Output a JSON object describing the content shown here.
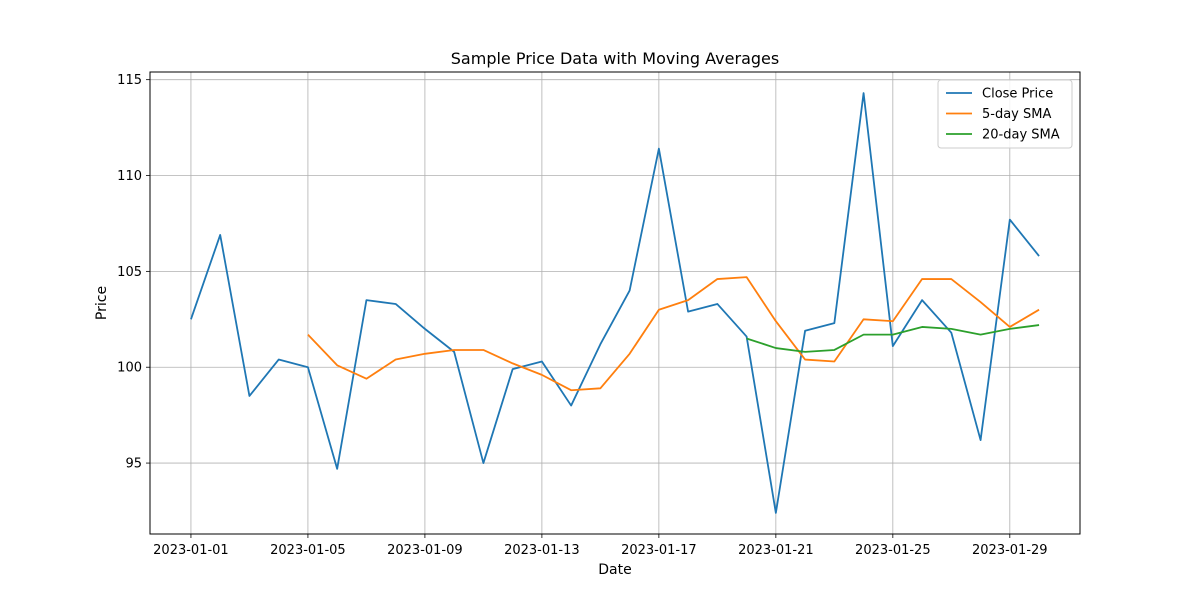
{
  "chart_data": {
    "type": "line",
    "title": "Sample Price Data with Moving Averages",
    "xlabel": "Date",
    "ylabel": "Price",
    "x": [
      "2023-01-01",
      "2023-01-02",
      "2023-01-03",
      "2023-01-04",
      "2023-01-05",
      "2023-01-06",
      "2023-01-07",
      "2023-01-08",
      "2023-01-09",
      "2023-01-10",
      "2023-01-11",
      "2023-01-12",
      "2023-01-13",
      "2023-01-14",
      "2023-01-15",
      "2023-01-16",
      "2023-01-17",
      "2023-01-18",
      "2023-01-19",
      "2023-01-20",
      "2023-01-21",
      "2023-01-22",
      "2023-01-23",
      "2023-01-24",
      "2023-01-25",
      "2023-01-26",
      "2023-01-27",
      "2023-01-28",
      "2023-01-29",
      "2023-01-30"
    ],
    "xticks": [
      "2023-01-01",
      "2023-01-05",
      "2023-01-09",
      "2023-01-13",
      "2023-01-17",
      "2023-01-21",
      "2023-01-25",
      "2023-01-29"
    ],
    "yticks": [
      95,
      100,
      105,
      110,
      115
    ],
    "xlim": [
      "2022-12-30T14:24",
      "2023-01-31T09:36"
    ],
    "ylim": [
      91.3,
      115.4
    ],
    "grid": true,
    "legend_position": "top-right",
    "series": [
      {
        "name": "Close Price",
        "color": "#1f77b4",
        "values": [
          102.5,
          106.9,
          98.5,
          100.4,
          100.0,
          94.7,
          103.5,
          103.3,
          102.0,
          100.8,
          95.0,
          99.9,
          100.3,
          98.0,
          101.2,
          104.0,
          111.4,
          102.9,
          103.3,
          101.6,
          92.4,
          101.9,
          102.3,
          114.3,
          101.1,
          103.5,
          101.8,
          96.2,
          107.7,
          105.8
        ]
      },
      {
        "name": "5-day SMA",
        "color": "#ff7f0e",
        "values": [
          null,
          null,
          null,
          null,
          101.7,
          100.1,
          99.4,
          100.4,
          100.7,
          100.9,
          100.9,
          100.2,
          99.6,
          98.8,
          98.9,
          100.7,
          103.0,
          103.5,
          104.6,
          104.7,
          102.4,
          100.4,
          100.3,
          102.5,
          102.4,
          104.6,
          104.6,
          103.4,
          102.1,
          103.0
        ]
      },
      {
        "name": "20-day SMA",
        "color": "#2ca02c",
        "values": [
          null,
          null,
          null,
          null,
          null,
          null,
          null,
          null,
          null,
          null,
          null,
          null,
          null,
          null,
          null,
          null,
          null,
          null,
          null,
          101.5,
          101.0,
          100.8,
          100.9,
          101.7,
          101.7,
          102.1,
          102.0,
          101.7,
          102.0,
          102.2
        ]
      }
    ]
  }
}
